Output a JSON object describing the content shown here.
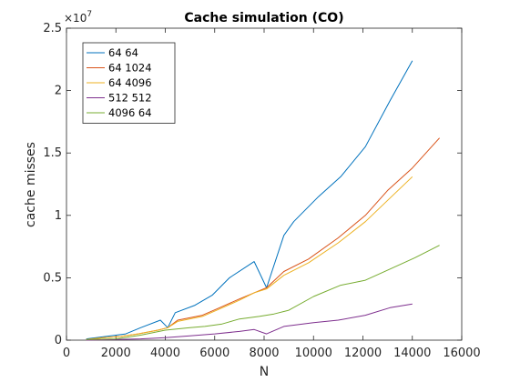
{
  "chart_data": {
    "type": "line",
    "title": "Cache simulation (CO)",
    "xlabel": "N",
    "ylabel": "cache misses",
    "xlim": [
      0,
      16000
    ],
    "ylim": [
      0,
      2.5
    ],
    "y_multiplier_base": "×10",
    "y_multiplier_exponent": "7",
    "x_ticks": [
      0,
      2000,
      4000,
      6000,
      8000,
      10000,
      12000,
      14000,
      16000
    ],
    "y_ticks": [
      0,
      0.5,
      1,
      1.5,
      2,
      2.5
    ],
    "x_tick_labels": [
      "0",
      "2000",
      "4000",
      "6000",
      "8000",
      "10000",
      "12000",
      "14000",
      "16000"
    ],
    "y_tick_labels": [
      "0",
      "0.5",
      "1",
      "1.5",
      "2",
      "2.5"
    ],
    "grid": false,
    "legend_position": "top-left",
    "series": [
      {
        "name": "64 64",
        "color": "#0072BD",
        "points": [
          [
            800,
            0.01
          ],
          [
            1200,
            0.02
          ],
          [
            1600,
            0.03
          ],
          [
            2000,
            0.04
          ],
          [
            2400,
            0.05
          ],
          [
            3000,
            0.1
          ],
          [
            3800,
            0.16
          ],
          [
            4100,
            0.1
          ],
          [
            4400,
            0.22
          ],
          [
            5200,
            0.28
          ],
          [
            5900,
            0.36
          ],
          [
            6600,
            0.5
          ],
          [
            7600,
            0.63
          ],
          [
            8100,
            0.42
          ],
          [
            8800,
            0.84
          ],
          [
            9200,
            0.95
          ],
          [
            10200,
            1.15
          ],
          [
            11100,
            1.31
          ],
          [
            12100,
            1.55
          ],
          [
            13100,
            1.92
          ],
          [
            14000,
            2.24
          ]
        ]
      },
      {
        "name": "64 1024",
        "color": "#D95319",
        "points": [
          [
            800,
            0.005
          ],
          [
            1500,
            0.02
          ],
          [
            2200,
            0.03
          ],
          [
            2900,
            0.05
          ],
          [
            3700,
            0.08
          ],
          [
            4100,
            0.1
          ],
          [
            4500,
            0.16
          ],
          [
            5500,
            0.2
          ],
          [
            6200,
            0.26
          ],
          [
            7000,
            0.33
          ],
          [
            7600,
            0.38
          ],
          [
            8100,
            0.42
          ],
          [
            8800,
            0.55
          ],
          [
            9800,
            0.65
          ],
          [
            11000,
            0.82
          ],
          [
            12100,
            1.0
          ],
          [
            13000,
            1.2
          ],
          [
            14000,
            1.38
          ],
          [
            15100,
            1.62
          ]
        ]
      },
      {
        "name": "64 4096",
        "color": "#EDB120",
        "points": [
          [
            800,
            0.005
          ],
          [
            1500,
            0.02
          ],
          [
            2200,
            0.03
          ],
          [
            2900,
            0.05
          ],
          [
            3700,
            0.08
          ],
          [
            4100,
            0.1
          ],
          [
            4500,
            0.15
          ],
          [
            5500,
            0.19
          ],
          [
            6200,
            0.25
          ],
          [
            7000,
            0.32
          ],
          [
            7600,
            0.38
          ],
          [
            8100,
            0.41
          ],
          [
            8800,
            0.52
          ],
          [
            9800,
            0.62
          ],
          [
            11000,
            0.78
          ],
          [
            12100,
            0.95
          ],
          [
            13000,
            1.12
          ],
          [
            14000,
            1.31
          ]
        ]
      },
      {
        "name": "512 512",
        "color": "#7E2F8E",
        "points": [
          [
            800,
            0.0
          ],
          [
            2000,
            0.005
          ],
          [
            3000,
            0.01
          ],
          [
            4000,
            0.02
          ],
          [
            5000,
            0.035
          ],
          [
            6000,
            0.05
          ],
          [
            7000,
            0.07
          ],
          [
            7600,
            0.085
          ],
          [
            8100,
            0.05
          ],
          [
            8800,
            0.11
          ],
          [
            10000,
            0.14
          ],
          [
            11000,
            0.16
          ],
          [
            12100,
            0.2
          ],
          [
            13100,
            0.26
          ],
          [
            14000,
            0.29
          ]
        ]
      },
      {
        "name": "4096 64",
        "color": "#77AC30",
        "points": [
          [
            800,
            0.005
          ],
          [
            2000,
            0.01
          ],
          [
            3000,
            0.04
          ],
          [
            4000,
            0.08
          ],
          [
            5000,
            0.1
          ],
          [
            5600,
            0.11
          ],
          [
            6300,
            0.13
          ],
          [
            7000,
            0.17
          ],
          [
            7800,
            0.19
          ],
          [
            8400,
            0.21
          ],
          [
            9000,
            0.24
          ],
          [
            10000,
            0.35
          ],
          [
            11100,
            0.44
          ],
          [
            12100,
            0.48
          ],
          [
            13100,
            0.57
          ],
          [
            14100,
            0.66
          ],
          [
            15100,
            0.76
          ]
        ]
      }
    ]
  }
}
